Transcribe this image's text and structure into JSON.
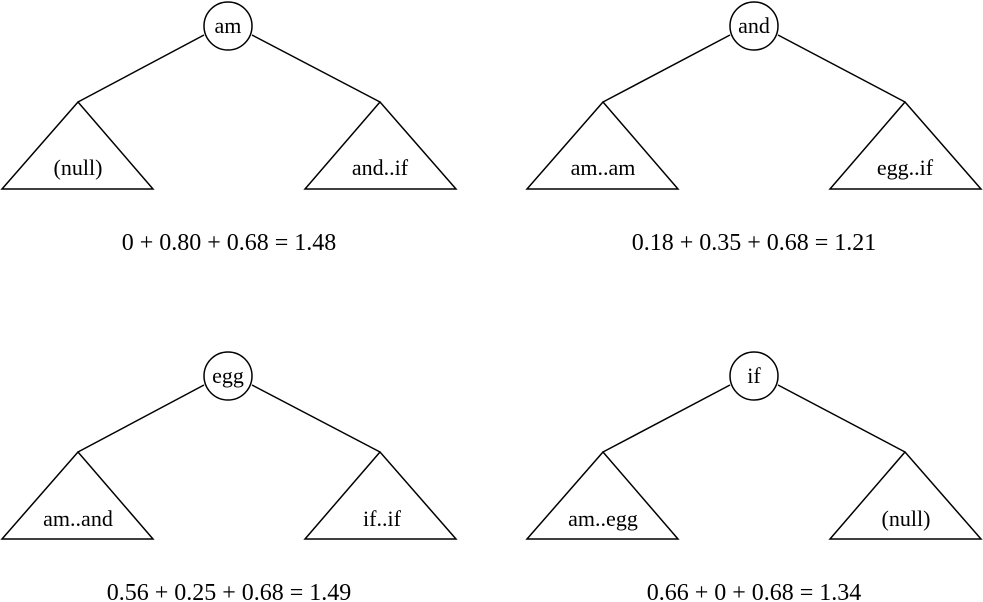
{
  "trees": [
    {
      "root": "am",
      "left": "(null)",
      "right": "and..if",
      "equation": "0 + 0.80 + 0.68 = 1.48"
    },
    {
      "root": "and",
      "left": "am..am",
      "right": "egg..if",
      "equation": "0.18 + 0.35 + 0.68 = 1.21"
    },
    {
      "root": "egg",
      "left": "am..and",
      "right": "if..if",
      "equation": "0.56 + 0.25 + 0.68 = 1.49"
    },
    {
      "root": "if",
      "left": "am..egg",
      "right": "(null)",
      "equation": "0.66 + 0 + 0.68 = 1.34"
    }
  ]
}
